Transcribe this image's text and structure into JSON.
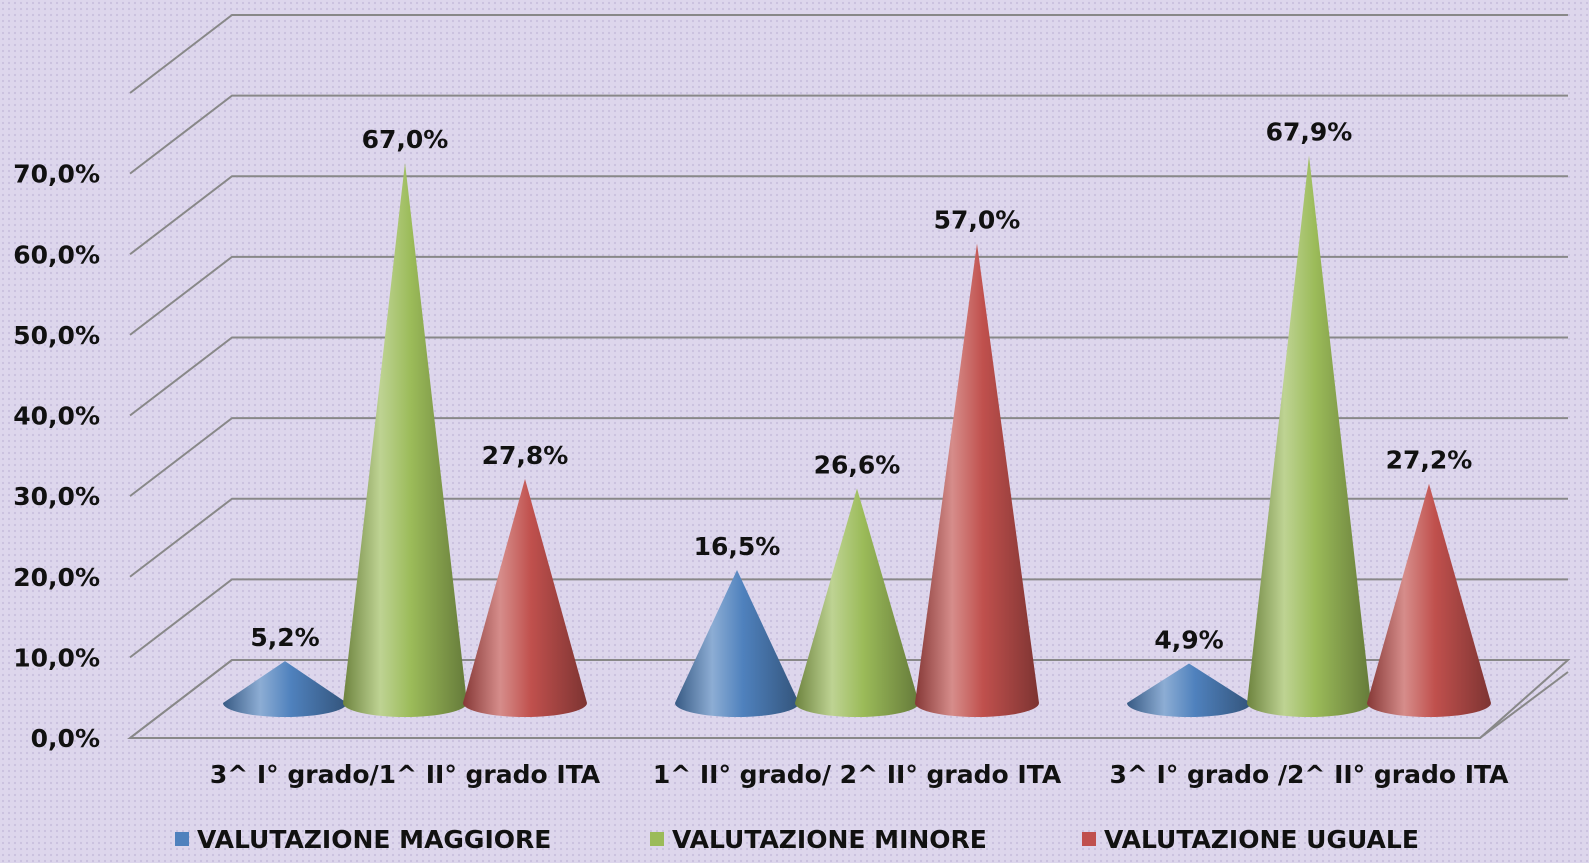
{
  "chart_data": {
    "type": "cone",
    "categories": [
      "3^ I° grado/1^  II° grado ITA",
      "1^  II° grado/ 2^ II° grado ITA",
      "3^ I° grado /2^ II° grado ITA"
    ],
    "series": [
      {
        "name": "VALUTAZIONE MAGGIORE",
        "color": "#4f81bd",
        "values": [
          5.2,
          16.5,
          4.9
        ],
        "value_labels": [
          "5,2%",
          "16,5%",
          "4,9%"
        ]
      },
      {
        "name": "VALUTAZIONE MINORE",
        "color": "#9bbb59",
        "values": [
          67.0,
          26.6,
          67.9
        ],
        "value_labels": [
          "67,0%",
          "26,6%",
          "67,9%"
        ]
      },
      {
        "name": "VALUTAZIONE UGUALE",
        "color": "#c0504d",
        "values": [
          27.8,
          57.0,
          27.2
        ],
        "value_labels": [
          "27,8%",
          "57,0%",
          "27,2%"
        ]
      }
    ],
    "ylim": [
      0,
      80
    ],
    "yticks": [
      {
        "value": 0,
        "label": "0,0%"
      },
      {
        "value": 10,
        "label": "10,0%"
      },
      {
        "value": 20,
        "label": "20,0%"
      },
      {
        "value": 30,
        "label": "30,0%"
      },
      {
        "value": 40,
        "label": "40,0%"
      },
      {
        "value": 50,
        "label": "50,0%"
      },
      {
        "value": 60,
        "label": "60,0%"
      },
      {
        "value": 70,
        "label": "70,0%"
      }
    ],
    "grid": true,
    "legend": "bottom"
  }
}
